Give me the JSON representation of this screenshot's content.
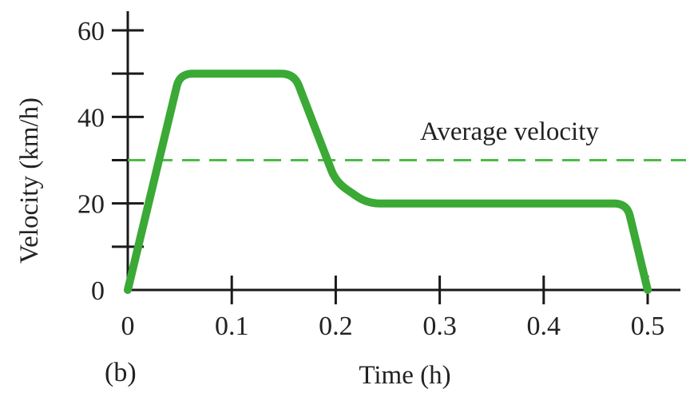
{
  "chart_data": {
    "type": "line",
    "panel_label": "(b)",
    "xlabel": "Time (h)",
    "ylabel": "Velocity (km/h)",
    "xlim": [
      0,
      0.5
    ],
    "ylim": [
      0,
      60
    ],
    "x_ticks": [
      0,
      0.1,
      0.2,
      0.3,
      0.4,
      0.5
    ],
    "x_tick_labels": [
      "0",
      "0.1",
      "0.2",
      "0.3",
      "0.4",
      "0.5"
    ],
    "y_ticks": [
      0,
      10,
      20,
      30,
      40,
      50,
      60
    ],
    "y_tick_labels": [
      "0",
      "",
      "20",
      "",
      "40",
      "",
      "60"
    ],
    "grid": false,
    "series": [
      {
        "color": "#3aa935",
        "x": [
          0,
          0.05,
          0.16,
          0.2,
          0.23,
          0.48,
          0.5
        ],
        "y": [
          0,
          50,
          50,
          25,
          20,
          20,
          0
        ]
      }
    ],
    "reference_line": {
      "label": "Average velocity",
      "y": 30,
      "style": "dashed",
      "color": "#4cbb45"
    }
  }
}
